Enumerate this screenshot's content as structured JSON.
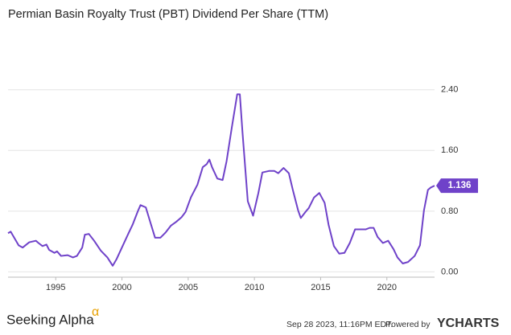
{
  "chart_data": {
    "type": "line",
    "title": "Permian Basin Royalty Trust (PBT) Dividend Per Share (TTM)",
    "series": [
      {
        "name": "PBT Dividend Per Share (TTM)",
        "color": "#6f42c9",
        "x": [
          1991.4,
          1991.6,
          1992.2,
          1992.5,
          1993,
          1993.5,
          1993.7,
          1994,
          1994.3,
          1994.5,
          1994.9,
          1995.1,
          1995.4,
          1995.9,
          1996.3,
          1996.6,
          1997,
          1997.2,
          1997.5,
          1997.9,
          1998.4,
          1998.9,
          1999.3,
          1999.6,
          2000.1,
          2000.5,
          2000.8,
          2001.2,
          2001.4,
          2001.8,
          2002.2,
          2002.5,
          2002.9,
          2003.3,
          2003.7,
          2004.1,
          2004.5,
          2004.8,
          2005.2,
          2005.7,
          2006.1,
          2006.4,
          2006.6,
          2006.8,
          2007.2,
          2007.6,
          2007.9,
          2008.3,
          2008.7,
          2008.9,
          2009.1,
          2009.5,
          2009.9,
          2010.3,
          2010.6,
          2011.1,
          2011.5,
          2011.8,
          2012.2,
          2012.6,
          2012.9,
          2013.3,
          2013.5,
          2013.9,
          2014.1,
          2014.5,
          2014.9,
          2015.3,
          2015.6,
          2016,
          2016.4,
          2016.8,
          2017.2,
          2017.6,
          2017.9,
          2018.4,
          2018.7,
          2019,
          2019.3,
          2019.7,
          2020.1,
          2020.5,
          2020.8,
          2021.2,
          2021.6,
          2022.1,
          2022.5,
          2022.8,
          2023.1,
          2023.3,
          2023.6
        ],
        "values": [
          0.51,
          0.53,
          0.35,
          0.32,
          0.39,
          0.41,
          0.38,
          0.34,
          0.36,
          0.29,
          0.25,
          0.27,
          0.21,
          0.22,
          0.19,
          0.21,
          0.32,
          0.49,
          0.5,
          0.41,
          0.28,
          0.19,
          0.08,
          0.17,
          0.36,
          0.51,
          0.62,
          0.8,
          0.88,
          0.85,
          0.62,
          0.45,
          0.45,
          0.52,
          0.61,
          0.66,
          0.72,
          0.79,
          0.98,
          1.15,
          1.38,
          1.42,
          1.48,
          1.38,
          1.23,
          1.21,
          1.46,
          1.91,
          2.34,
          2.34,
          1.84,
          0.93,
          0.74,
          1.04,
          1.31,
          1.33,
          1.33,
          1.3,
          1.37,
          1.3,
          1.08,
          0.81,
          0.71,
          0.8,
          0.84,
          0.98,
          1.04,
          0.91,
          0.62,
          0.34,
          0.24,
          0.25,
          0.38,
          0.56,
          0.56,
          0.56,
          0.58,
          0.58,
          0.46,
          0.38,
          0.41,
          0.3,
          0.19,
          0.11,
          0.13,
          0.21,
          0.35,
          0.81,
          1.08,
          1.11,
          1.136
        ]
      }
    ],
    "last_value_label": "1.136",
    "xlim": [
      1991.4,
      2023.6
    ],
    "xticks": [
      1995,
      2000,
      2005,
      2010,
      2015,
      2020
    ],
    "ylim": [
      -0.07,
      3.16
    ],
    "yticks": [
      {
        "value": 0,
        "label": "0.00"
      },
      {
        "value": 0.8,
        "label": "0.80"
      },
      {
        "value": 1.6,
        "label": "1.60"
      },
      {
        "value": 2.4,
        "label": "2.40"
      }
    ],
    "grid": true,
    "y_axis_side": "right"
  },
  "footer": {
    "brand": "Seeking Alpha",
    "brand_mark": "α",
    "timestamp": "Sep 28 2023, 11:16PM EDT.",
    "powered": "Powered by",
    "provider": "YCHARTS"
  }
}
